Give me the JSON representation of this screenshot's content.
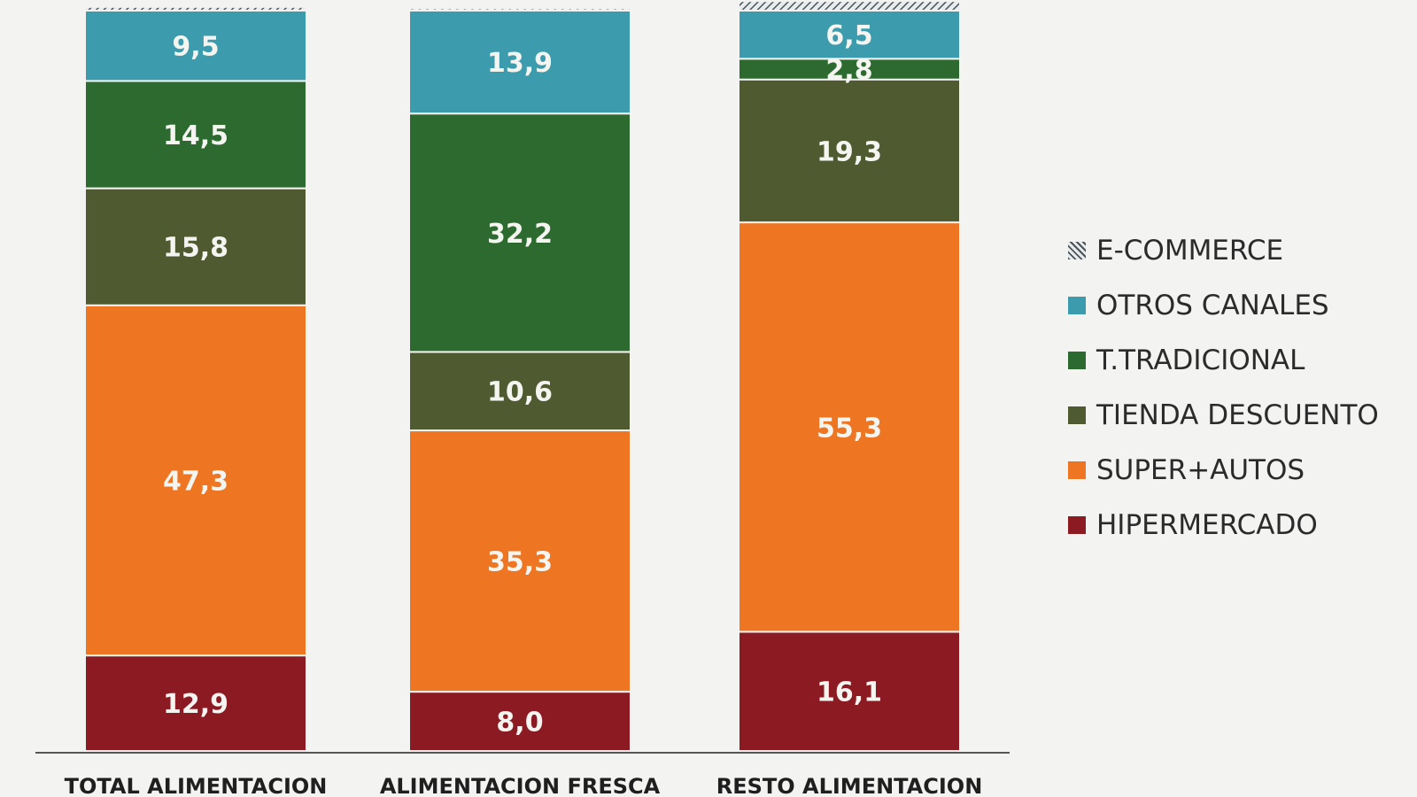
{
  "chart_data": {
    "type": "bar",
    "stacked": true,
    "unit": "%",
    "categories": [
      "TOTAL ALIMENTACION",
      "ALIMENTACION FRESCA",
      "RESTO ALIMENTACION"
    ],
    "series": [
      {
        "name": "HIPERMERCADO",
        "color": "#8b1a22",
        "values": [
          12.9,
          8.0,
          16.1
        ],
        "labels": [
          "12,9",
          "8,0",
          "16,1"
        ]
      },
      {
        "name": "SUPER+AUTOS",
        "color": "#ee7622",
        "values": [
          47.3,
          35.3,
          55.3
        ],
        "labels": [
          "47,3",
          "35,3",
          "55,3"
        ]
      },
      {
        "name": "TIENDA DESCUENTO",
        "color": "#4f5a30",
        "values": [
          15.8,
          10.6,
          19.3
        ],
        "labels": [
          "15,8",
          "10,6",
          "19,3"
        ]
      },
      {
        "name": "T.TRADICIONAL",
        "color": "#2c6a2f",
        "values": [
          14.5,
          32.2,
          2.8
        ],
        "labels": [
          "14,5",
          "32,2",
          "2,8"
        ]
      },
      {
        "name": "OTROS CANALES",
        "color": "#3c9bac",
        "values": [
          9.5,
          13.9,
          6.5
        ],
        "labels": [
          "9,5",
          "13,9",
          "6,5"
        ]
      },
      {
        "name": "E-COMMERCE",
        "color": "#6f7a80",
        "pattern": "diagonal-hatch",
        "values": [
          0.5,
          0.3,
          1.3
        ],
        "labels": [
          "",
          "",
          ""
        ]
      }
    ],
    "legend": {
      "position": "right",
      "order": [
        "E-COMMERCE",
        "OTROS CANALES",
        "T.TRADICIONAL",
        "TIENDA DESCUENTO",
        "SUPER+AUTOS",
        "HIPERMERCADO"
      ]
    },
    "data_labels": true,
    "grid": false
  }
}
